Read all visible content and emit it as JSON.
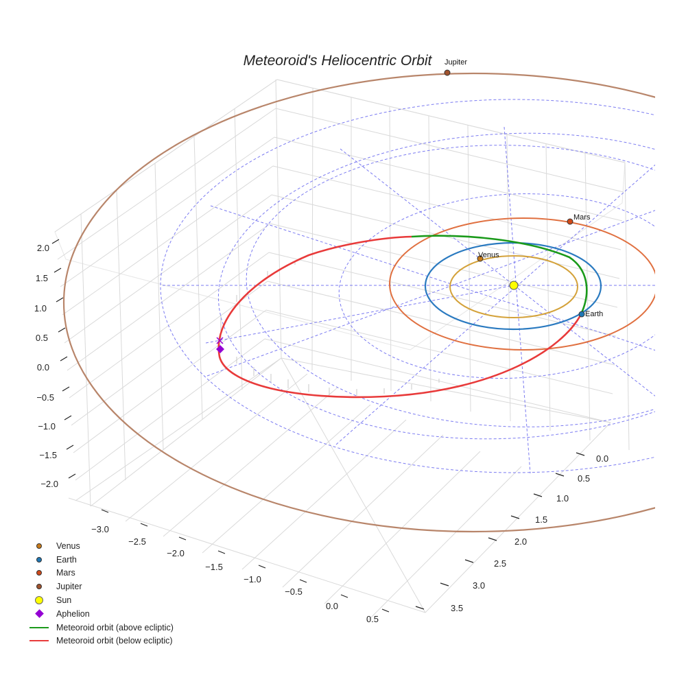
{
  "chart_data": {
    "type": "scatter",
    "projection": "3d",
    "title": "Meteoroid's Heliocentric Orbit",
    "axes": {
      "x_ticks": [
        "−3.0",
        "−2.5",
        "−2.0",
        "−1.5",
        "−1.0",
        "−0.5",
        "0.0",
        "0.5"
      ],
      "y_ticks": [
        "0.0",
        "0.5",
        "1.0",
        "1.5",
        "2.0",
        "2.5",
        "3.0",
        "3.5"
      ],
      "z_ticks": [
        "2.0",
        "1.5",
        "1.0",
        "0.5",
        "0.0",
        "−0.5",
        "−1.0",
        "−1.5",
        "−2.0"
      ],
      "z_range": [
        -2.2,
        2.2
      ]
    },
    "planets": [
      {
        "name": "Venus",
        "orbit_radius_au": 0.72,
        "color": "#d4a23a",
        "marker_color": "#c87a1a"
      },
      {
        "name": "Earth",
        "orbit_radius_au": 1.0,
        "color": "#2a7ac0",
        "marker_color": "#1f77b4"
      },
      {
        "name": "Mars",
        "orbit_radius_au": 1.52,
        "color": "#e07040",
        "marker_color": "#d04a1a"
      },
      {
        "name": "Jupiter",
        "orbit_radius_au": 5.2,
        "color": "#b8856a",
        "marker_color": "#a0522d"
      }
    ],
    "sun": {
      "name": "Sun",
      "color": "#ffff00"
    },
    "aphelion": {
      "name": "Aphelion",
      "color": "#9400d3"
    },
    "ecliptic_grid_radii_au": [
      1.0,
      2.0,
      3.0,
      4.0
    ],
    "meteoroid_orbit": {
      "above_label": "Meteoroid orbit (above ecliptic)",
      "below_label": "Meteoroid orbit (below ecliptic)",
      "above_color": "#1a9a1a",
      "below_color": "#e83a3a"
    },
    "legend": [
      {
        "label": "Venus",
        "kind": "dot",
        "color": "#c87a1a"
      },
      {
        "label": "Earth",
        "kind": "dot",
        "color": "#1f77b4"
      },
      {
        "label": "Mars",
        "kind": "dot",
        "color": "#d04a1a"
      },
      {
        "label": "Jupiter",
        "kind": "dot",
        "color": "#a0522d"
      },
      {
        "label": "Sun",
        "kind": "sun",
        "color": "#ffff00"
      },
      {
        "label": "Aphelion",
        "kind": "diamond",
        "color": "#9400d3"
      },
      {
        "label": "Meteoroid orbit (above ecliptic)",
        "kind": "line",
        "color": "#1a9a1a"
      },
      {
        "label": "Meteoroid orbit (below ecliptic)",
        "kind": "line",
        "color": "#e83a3a"
      }
    ]
  }
}
